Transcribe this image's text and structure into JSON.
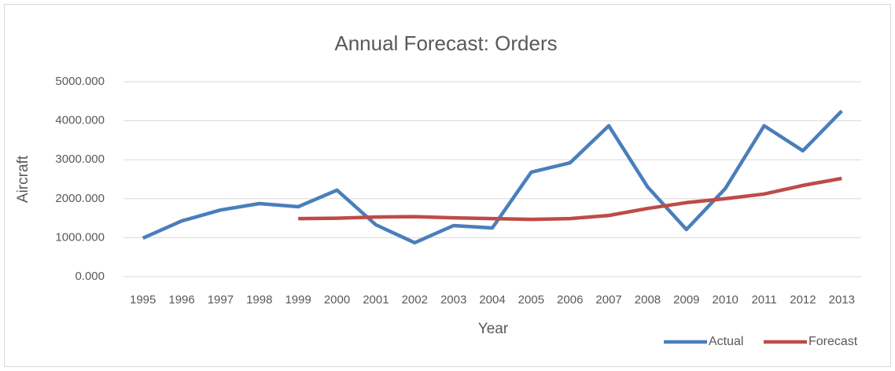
{
  "chart_data": {
    "type": "line",
    "title": "Annual Forecast: Orders",
    "x_label": "Year",
    "y_label": "Aircraft",
    "categories": [
      "1995",
      "1996",
      "1997",
      "1998",
      "1999",
      "2000",
      "2001",
      "2002",
      "2003",
      "2004",
      "2005",
      "2006",
      "2007",
      "2008",
      "2009",
      "2010",
      "2011",
      "2012",
      "2013"
    ],
    "series": [
      {
        "name": "Actual",
        "color": "#4a7ebb",
        "values": [
          990,
          1430,
          1710,
          1875,
          1795,
          2220,
          1330,
          870,
          1310,
          1250,
          2680,
          2920,
          3870,
          2300,
          1210,
          2260,
          3870,
          3230,
          4250
        ]
      },
      {
        "name": "Forecast",
        "color": "#be4b48",
        "values": [
          null,
          null,
          null,
          null,
          1490,
          1500,
          1530,
          1540,
          1510,
          1490,
          1470,
          1490,
          1570,
          1750,
          1900,
          2000,
          2120,
          2340,
          2520
        ]
      }
    ],
    "ylim": [
      0,
      5000
    ],
    "yticks": [
      {
        "value": 0,
        "label": "0.000"
      },
      {
        "value": 1000,
        "label": "1000.000"
      },
      {
        "value": 2000,
        "label": "2000.000"
      },
      {
        "value": 3000,
        "label": "3000.000"
      },
      {
        "value": 4000,
        "label": "4000.000"
      },
      {
        "value": 5000,
        "label": "5000.000"
      }
    ],
    "grid": true,
    "legend": "bottom-right"
  }
}
